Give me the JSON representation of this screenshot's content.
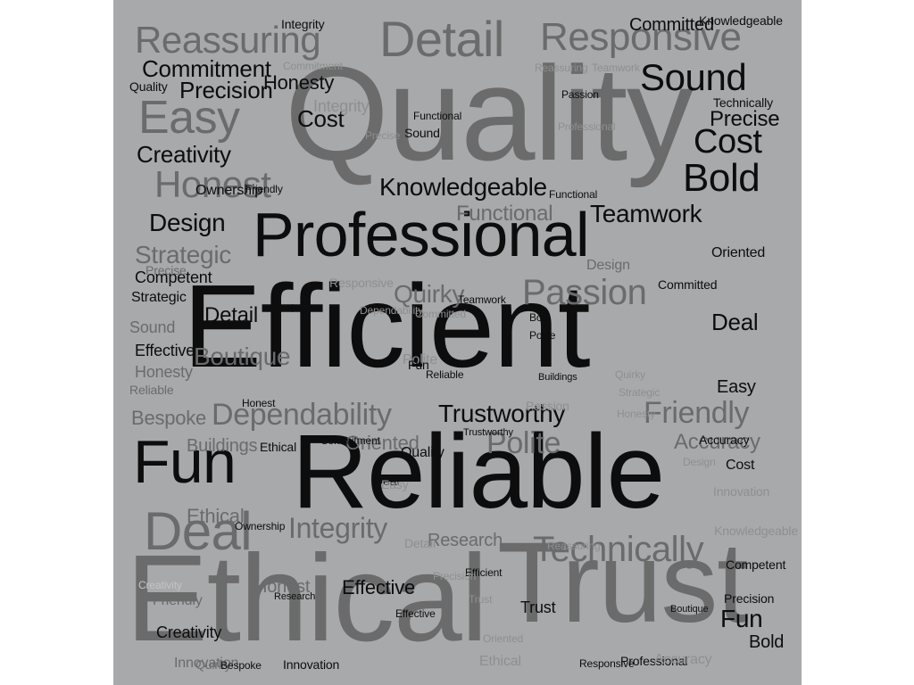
{
  "colors": {
    "background": "#a7a9ab",
    "dark": "#0d0d0d",
    "mid": "#6b6b6b",
    "light": "#8f8f8f",
    "pale": "#c4c4c4"
  },
  "words": [
    {
      "text": "Reliable",
      "weight": 10,
      "tone": "dark"
    },
    {
      "text": "Efficient",
      "weight": 10,
      "tone": "dark"
    },
    {
      "text": "Trust",
      "weight": 9,
      "tone": "mid"
    },
    {
      "text": "Ethical",
      "weight": 9,
      "tone": "mid"
    },
    {
      "text": "Quality",
      "weight": 9,
      "tone": "mid"
    },
    {
      "text": "Professional",
      "weight": 8,
      "tone": "dark"
    },
    {
      "text": "Fun",
      "weight": 7,
      "tone": "dark"
    },
    {
      "text": "Detail",
      "weight": 6,
      "tone": "mid"
    },
    {
      "text": "Responsive",
      "weight": 5,
      "tone": "mid"
    },
    {
      "text": "Reassuring",
      "weight": 5,
      "tone": "mid"
    },
    {
      "text": "Deal",
      "weight": 5,
      "tone": "mid"
    },
    {
      "text": "Easy",
      "weight": 5,
      "tone": "mid"
    },
    {
      "text": "Honest",
      "weight": 5,
      "tone": "mid"
    },
    {
      "text": "Sound",
      "weight": 4,
      "tone": "dark"
    },
    {
      "text": "Bold",
      "weight": 4,
      "tone": "dark"
    },
    {
      "text": "Cost",
      "weight": 4,
      "tone": "dark"
    },
    {
      "text": "Technically",
      "weight": 4,
      "tone": "mid"
    },
    {
      "text": "Passion",
      "weight": 4,
      "tone": "mid"
    },
    {
      "text": "Integrity",
      "weight": 4,
      "tone": "mid"
    },
    {
      "text": "Knowledgeable",
      "weight": 3,
      "tone": "dark"
    },
    {
      "text": "Teamwork",
      "weight": 3,
      "tone": "dark"
    },
    {
      "text": "Dependability",
      "weight": 3,
      "tone": "mid"
    },
    {
      "text": "Trustworthy",
      "weight": 3,
      "tone": "dark"
    },
    {
      "text": "Friendly",
      "weight": 3,
      "tone": "mid"
    },
    {
      "text": "Polite",
      "weight": 3,
      "tone": "mid"
    },
    {
      "text": "Commitment",
      "weight": 3,
      "tone": "dark"
    },
    {
      "text": "Precision",
      "weight": 3,
      "tone": "dark"
    },
    {
      "text": "Creativity",
      "weight": 3,
      "tone": "dark"
    },
    {
      "text": "Design",
      "weight": 3,
      "tone": "dark"
    },
    {
      "text": "Precise",
      "weight": 3,
      "tone": "dark"
    },
    {
      "text": "Strategic",
      "weight": 3,
      "tone": "mid"
    },
    {
      "text": "Quirky",
      "weight": 3,
      "tone": "mid"
    },
    {
      "text": "Boutique",
      "weight": 3,
      "tone": "mid"
    },
    {
      "text": "Oriented",
      "weight": 3,
      "tone": "mid"
    },
    {
      "text": "Effective",
      "weight": 3,
      "tone": "dark"
    },
    {
      "text": "Accuracy",
      "weight": 3,
      "tone": "mid"
    },
    {
      "text": "Functional",
      "weight": 3,
      "tone": "mid"
    },
    {
      "text": "Research",
      "weight": 3,
      "tone": "mid"
    },
    {
      "text": "Honesty",
      "weight": 2,
      "tone": "dark"
    },
    {
      "text": "Competent",
      "weight": 2,
      "tone": "dark"
    },
    {
      "text": "Bespoke",
      "weight": 2,
      "tone": "mid"
    },
    {
      "text": "Buildings",
      "weight": 2,
      "tone": "mid"
    },
    {
      "text": "Committed",
      "weight": 2,
      "tone": "dark"
    },
    {
      "text": "Innovation",
      "weight": 2,
      "tone": "mid"
    },
    {
      "text": "Ownership",
      "weight": 2,
      "tone": "dark"
    },
    {
      "text": "Ethical",
      "weight": 2,
      "tone": "mid"
    },
    {
      "text": "Precise",
      "weight": 2,
      "tone": "mid"
    },
    {
      "text": "Reliable",
      "weight": 2,
      "tone": "mid"
    },
    {
      "text": "Quality",
      "weight": 2,
      "tone": "dark"
    },
    {
      "text": "Cost",
      "weight": 2,
      "tone": "dark"
    },
    {
      "text": "Fun",
      "weight": 2,
      "tone": "dark"
    },
    {
      "text": "Deal",
      "weight": 2,
      "tone": "dark"
    },
    {
      "text": "Sound",
      "weight": 2,
      "tone": "mid"
    },
    {
      "text": "Detail",
      "weight": 2,
      "tone": "dark"
    },
    {
      "text": "Honest",
      "weight": 2,
      "tone": "mid"
    },
    {
      "text": "Trust",
      "weight": 2,
      "tone": "dark"
    },
    {
      "text": "Bold",
      "weight": 2,
      "tone": "dark"
    },
    {
      "text": "Easy",
      "weight": 2,
      "tone": "dark"
    },
    {
      "text": "Friendly",
      "weight": 2,
      "tone": "mid"
    },
    {
      "text": "Creativity",
      "weight": 2,
      "tone": "dark"
    },
    {
      "text": "Quirky",
      "weight": 2,
      "tone": "mid"
    },
    {
      "text": "Innovation",
      "weight": 2,
      "tone": "dark"
    },
    {
      "text": "Professional",
      "weight": 2,
      "tone": "dark"
    },
    {
      "text": "Responsive",
      "weight": 2,
      "tone": "dark"
    },
    {
      "text": "Strategic",
      "weight": 1,
      "tone": "dark"
    },
    {
      "text": "Integrity",
      "weight": 2,
      "tone": "dark"
    },
    {
      "text": "Reassuring",
      "weight": 2,
      "tone": "light"
    },
    {
      "text": "Knowledgeable",
      "weight": 1,
      "tone": "light"
    },
    {
      "text": "Ethical",
      "weight": 2,
      "tone": "dark"
    },
    {
      "text": "Oriented",
      "weight": 1,
      "tone": "dark"
    },
    {
      "text": "Precision",
      "weight": 2,
      "tone": "dark"
    },
    {
      "text": "Competent",
      "weight": 2,
      "tone": "dark"
    },
    {
      "text": "Accuracy",
      "weight": 2,
      "tone": "dark"
    },
    {
      "text": "Effective",
      "weight": 2,
      "tone": "dark"
    },
    {
      "text": "Honesty",
      "weight": 2,
      "tone": "mid"
    },
    {
      "text": "Design",
      "weight": 2,
      "tone": "mid"
    },
    {
      "text": "Teamwork",
      "weight": 2,
      "tone": "dark"
    },
    {
      "text": "Commitment",
      "weight": 2,
      "tone": "light"
    },
    {
      "text": "Committed",
      "weight": 2,
      "tone": "dark"
    },
    {
      "text": "Functional",
      "weight": 2,
      "tone": "dark"
    },
    {
      "text": "Polite",
      "weight": 2,
      "tone": "light"
    },
    {
      "text": "Passion",
      "weight": 2,
      "tone": "dark"
    },
    {
      "text": "Buildings",
      "weight": 1,
      "tone": "dark"
    },
    {
      "text": "Boutique",
      "weight": 1,
      "tone": "dark"
    },
    {
      "text": "Research",
      "weight": 1,
      "tone": "dark"
    },
    {
      "text": "Technically",
      "weight": 1,
      "tone": "dark"
    },
    {
      "text": "Trustworthy",
      "weight": 1,
      "tone": "dark"
    },
    {
      "text": "Dependability",
      "weight": 1,
      "tone": "light"
    },
    {
      "text": "Bespoke",
      "weight": 1,
      "tone": "dark"
    },
    {
      "text": "Ownership",
      "weight": 1,
      "tone": "dark"
    },
    {
      "text": "Creativity",
      "weight": 1,
      "tone": "pale"
    },
    {
      "text": "Quality",
      "weight": 1,
      "tone": "dark"
    },
    {
      "text": "Fun",
      "weight": 1,
      "tone": "dark"
    },
    {
      "text": "Integrity",
      "weight": 1,
      "tone": "light"
    },
    {
      "text": "Sound",
      "weight": 1,
      "tone": "dark"
    },
    {
      "text": "Cost",
      "weight": 1,
      "tone": "dark"
    },
    {
      "text": "Precise",
      "weight": 1,
      "tone": "light"
    },
    {
      "text": "Efficient",
      "weight": 1,
      "tone": "dark"
    },
    {
      "text": "Friendly",
      "weight": 1,
      "tone": "dark"
    },
    {
      "text": "Honest",
      "weight": 1,
      "tone": "dark"
    },
    {
      "text": "Reliable",
      "weight": 1,
      "tone": "dark"
    },
    {
      "text": "Deal",
      "weight": 1,
      "tone": "dark"
    },
    {
      "text": "Easy",
      "weight": 1,
      "tone": "light"
    },
    {
      "text": "Detail",
      "weight": 1,
      "tone": "light"
    },
    {
      "text": "Trust",
      "weight": 1,
      "tone": "light"
    },
    {
      "text": "Bold",
      "weight": 1,
      "tone": "dark"
    },
    {
      "text": "Accuracy",
      "weight": 1,
      "tone": "light"
    },
    {
      "text": "Innovation",
      "weight": 1,
      "tone": "light"
    },
    {
      "text": "Quirky",
      "weight": 1,
      "tone": "light"
    },
    {
      "text": "Effective",
      "weight": 1,
      "tone": "dark"
    },
    {
      "text": "Precision",
      "weight": 1,
      "tone": "light"
    },
    {
      "text": "Strategic",
      "weight": 1,
      "tone": "light"
    },
    {
      "text": "Ethical",
      "weight": 1,
      "tone": "light"
    },
    {
      "text": "Professional",
      "weight": 1,
      "tone": "light"
    },
    {
      "text": "Knowledgeable",
      "weight": 1,
      "tone": "dark"
    },
    {
      "text": "Reassuring",
      "weight": 1,
      "tone": "light"
    },
    {
      "text": "Responsive",
      "weight": 1,
      "tone": "light"
    },
    {
      "text": "Commitment",
      "weight": 1,
      "tone": "dark"
    },
    {
      "text": "Committed",
      "weight": 1,
      "tone": "light"
    },
    {
      "text": "Teamwork",
      "weight": 1,
      "tone": "light"
    },
    {
      "text": "Polite",
      "weight": 1,
      "tone": "dark"
    },
    {
      "text": "Passion",
      "weight": 1,
      "tone": "light"
    },
    {
      "text": "Functional",
      "weight": 1,
      "tone": "dark"
    },
    {
      "text": "Oriented",
      "weight": 1,
      "tone": "light"
    },
    {
      "text": "Honesty",
      "weight": 1,
      "tone": "light"
    },
    {
      "text": "Design",
      "weight": 1,
      "tone": "light"
    },
    {
      "text": "Competent",
      "weight": 1,
      "tone": "dark"
    }
  ]
}
